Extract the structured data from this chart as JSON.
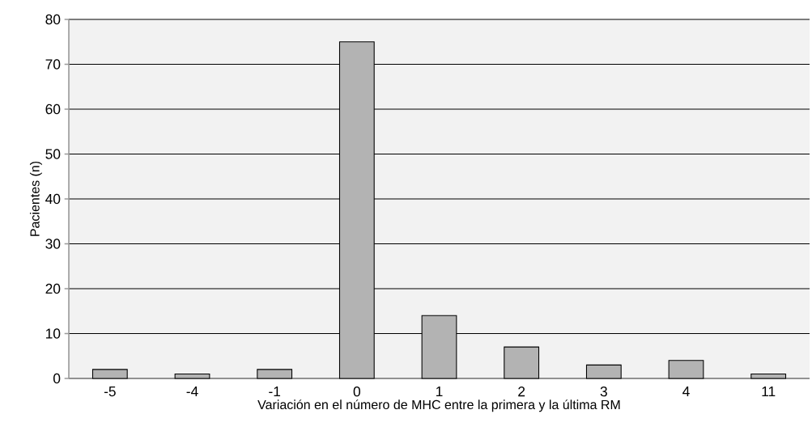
{
  "chart_data": {
    "type": "bar",
    "xlabel": "Variación en el número de MHC entre la primera y la última RM",
    "ylabel": "Pacientes (n)",
    "categories": [
      "-5",
      "-4",
      "-1",
      "0",
      "1",
      "2",
      "3",
      "4",
      "11"
    ],
    "values": [
      2,
      1,
      2,
      75,
      14,
      7,
      3,
      4,
      1
    ],
    "color": "#b3b3b3",
    "ylim": [
      0,
      80
    ],
    "yticks": [
      0,
      10,
      20,
      30,
      40,
      50,
      60,
      70,
      80
    ],
    "grid": "y"
  }
}
